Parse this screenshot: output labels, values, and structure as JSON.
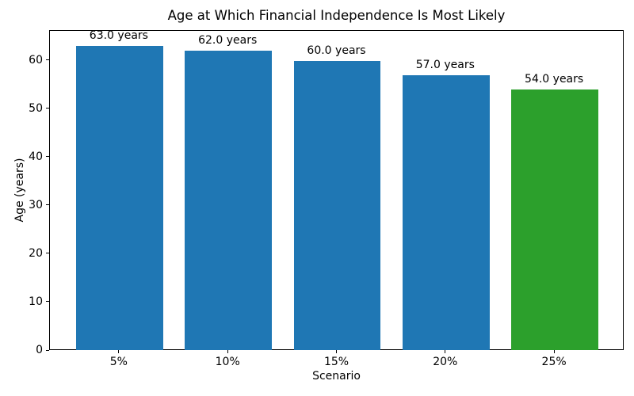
{
  "chart_data": {
    "type": "bar",
    "title": "Age at Which Financial Independence Is Most Likely",
    "xlabel": "Scenario",
    "ylabel": "Age (years)",
    "categories": [
      "5%",
      "10%",
      "15%",
      "20%",
      "25%"
    ],
    "values": [
      63.0,
      62.0,
      60.0,
      57.0,
      54.0
    ],
    "bar_labels": [
      "63.0 years",
      "62.0 years",
      "60.0 years",
      "57.0 years",
      "54.0 years"
    ],
    "bar_colors": [
      "#1f77b4",
      "#1f77b4",
      "#1f77b4",
      "#1f77b4",
      "#2ca02c"
    ],
    "yticks": [
      0,
      10,
      20,
      30,
      40,
      50,
      60
    ],
    "ylim": [
      0,
      66.15
    ],
    "grid": false,
    "legend_position": "none",
    "background_color": "#ffffff",
    "spine_color": "#000000"
  }
}
